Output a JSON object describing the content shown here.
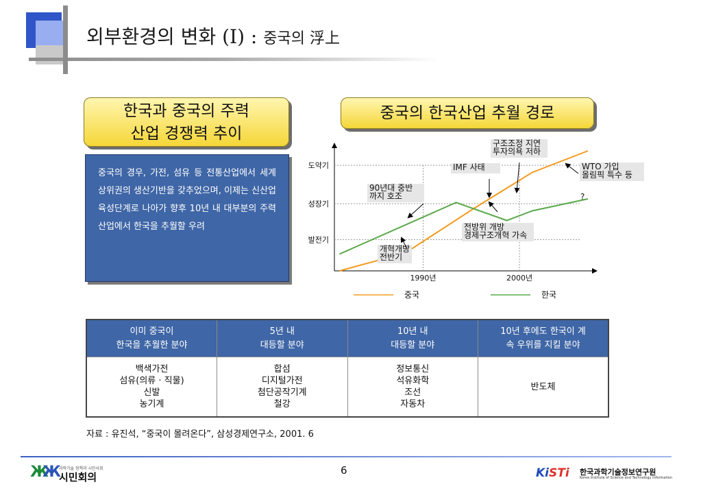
{
  "slide": {
    "title": "외부환경의 변화 (I) :",
    "title_sub": "중국의 浮上",
    "left_header_line1": "한국과 중국의 주력",
    "left_header_line2": "산업 경쟁력 추이",
    "right_header": "중국의 한국산업 추월 경로",
    "body_text": "중국의 경우, 가전, 섬유 등 전통산업에서 세계 상위권의 생산기반을 갖추었으며, 이제는 신산업 육성단계로 나아가 향후 10년 내 대부분의 주력 산업에서 한국을 추월할 우려",
    "source": "자료 : 유진석, “중국이 몰려온다”, 삼성경제연구소, 2001. 6",
    "page_number": "6"
  },
  "chart_data": {
    "type": "line",
    "x_ticks": [
      "1990년",
      "2000년"
    ],
    "y_levels": [
      "도약기",
      "성장기",
      "발전기"
    ],
    "series": [
      {
        "name": "중국",
        "color": "#f39a1e",
        "points": [
          [
            0.02,
            0.0
          ],
          [
            0.28,
            0.15
          ],
          [
            0.55,
            0.52
          ],
          [
            0.78,
            0.82
          ],
          [
            1.0,
            1.0
          ]
        ]
      },
      {
        "name": "한국",
        "color": "#5aa84a",
        "points": [
          [
            0.02,
            0.14
          ],
          [
            0.48,
            0.57
          ],
          [
            0.68,
            0.42
          ],
          [
            0.78,
            0.5
          ],
          [
            1.0,
            0.6
          ]
        ]
      }
    ],
    "annotations": [
      {
        "lines": [
          "구조조정 지연",
          "투자의욕 저하"
        ]
      },
      {
        "lines": [
          "IMF 사태"
        ]
      },
      {
        "lines": [
          "WTO 가입",
          "올림픽 특수 등"
        ]
      },
      {
        "lines": [
          "90년대 중반",
          "까지 호조"
        ]
      },
      {
        "lines": [
          "?"
        ]
      },
      {
        "lines": [
          "전방위 개방",
          "경제구조개혁 가속"
        ]
      },
      {
        "lines": [
          "개혁개방",
          "전반기"
        ]
      }
    ],
    "legend": {
      "placement": "bottom"
    }
  },
  "table": {
    "headers": [
      [
        "이미 중국이",
        "한국을 추월한 분야"
      ],
      [
        "5년 내",
        "대등할 분야"
      ],
      [
        "10년 내",
        "대등할 분야"
      ],
      [
        "10년 후에도 한국이 계",
        "속 우위를 지킬 분야"
      ]
    ],
    "cells": [
      [
        "백색가전",
        "섬유(의류 · 직물)",
        "신발",
        "농기계"
      ],
      [
        "합섬",
        "디지털가전",
        "첨단공작기계",
        "철강"
      ],
      [
        "정보통신",
        "석유화학",
        "조선",
        "자동차"
      ],
      [
        "반도체"
      ]
    ]
  },
  "footer": {
    "left_logo_tag": "과학기술 정책과 시민사회",
    "left_logo_name": "시민회의",
    "right_logo_brand_a": "Ki",
    "right_logo_brand_b": "STi",
    "right_logo_kname": "한국과학기술정보연구원",
    "right_logo_ename": "Korea Institute of Science and Technology Information"
  },
  "colors": {
    "accent_blue": "#3f66a6",
    "header_yellow": "#f5d638",
    "china_line": "#f39a1e",
    "korea_line": "#5aa84a"
  }
}
